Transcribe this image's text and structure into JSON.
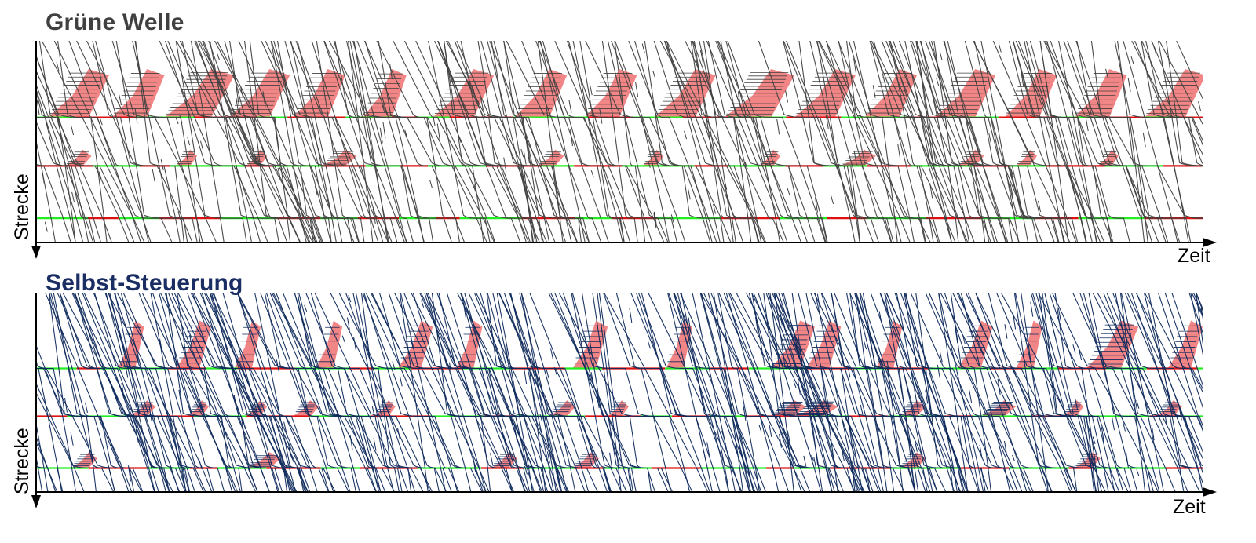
{
  "chart_data": [
    {
      "type": "line",
      "title": "Grüne Welle",
      "xlabel": "Zeit",
      "ylabel": "Strecke",
      "title_color": "#404040",
      "trajectory_color": "#404040",
      "queue_fill_color": "#f07070",
      "signal_colors": {
        "green": "#22ee22",
        "red": "#dd1111"
      },
      "signal_positions": [
        0.38,
        0.62,
        0.88
      ],
      "grid": false,
      "seed": 7,
      "vehicle_count": 230,
      "queue_regions": [
        {
          "signal": 0,
          "t": [
            0.01,
            0.065,
            0.11,
            0.165,
            0.22,
            0.28,
            0.34,
            0.41,
            0.47,
            0.53,
            0.59,
            0.65,
            0.71,
            0.77,
            0.83,
            0.89,
            0.95
          ],
          "w": [
            0.035,
            0.03,
            0.04,
            0.035,
            0.03,
            0.025,
            0.035,
            0.03,
            0.03,
            0.035,
            0.04,
            0.035,
            0.03,
            0.035,
            0.03,
            0.03,
            0.035
          ]
        },
        {
          "signal": 1,
          "t": [
            0.025,
            0.12,
            0.18,
            0.245,
            0.43,
            0.52,
            0.62,
            0.69,
            0.79,
            0.84,
            0.91
          ],
          "w": [
            0.015,
            0.012,
            0.012,
            0.02,
            0.015,
            0.012,
            0.012,
            0.02,
            0.015,
            0.012,
            0.012
          ]
        },
        {
          "signal": 2,
          "t": [],
          "w": []
        }
      ]
    },
    {
      "type": "line",
      "title": "Selbst-Steuerung",
      "xlabel": "Zeit",
      "ylabel": "Strecke",
      "title_color": "#1a2e63",
      "trajectory_color": "#0f2a5c",
      "queue_fill_color": "#f07070",
      "signal_colors": {
        "green": "#22ee22",
        "red": "#dd1111"
      },
      "signal_positions": [
        0.38,
        0.62,
        0.88
      ],
      "grid": false,
      "seed": 19,
      "vehicle_count": 300,
      "queue_regions": [
        {
          "signal": 0,
          "t": [
            0.07,
            0.12,
            0.17,
            0.24,
            0.31,
            0.36,
            0.46,
            0.54,
            0.63,
            0.66,
            0.72,
            0.79,
            0.84,
            0.9,
            0.97
          ],
          "w": [
            0.015,
            0.02,
            0.015,
            0.015,
            0.02,
            0.015,
            0.02,
            0.015,
            0.025,
            0.02,
            0.015,
            0.02,
            0.015,
            0.03,
            0.02
          ]
        },
        {
          "signal": 1,
          "t": [
            0.08,
            0.13,
            0.18,
            0.22,
            0.29,
            0.44,
            0.49,
            0.63,
            0.65,
            0.74,
            0.81,
            0.88,
            0.96
          ],
          "w": [
            0.015,
            0.012,
            0.012,
            0.015,
            0.012,
            0.015,
            0.012,
            0.02,
            0.025,
            0.015,
            0.02,
            0.012,
            0.015
          ]
        },
        {
          "signal": 2,
          "t": [
            0.03,
            0.18,
            0.39,
            0.46,
            0.74,
            0.89
          ],
          "w": [
            0.015,
            0.02,
            0.015,
            0.015,
            0.015,
            0.015
          ]
        }
      ]
    }
  ]
}
